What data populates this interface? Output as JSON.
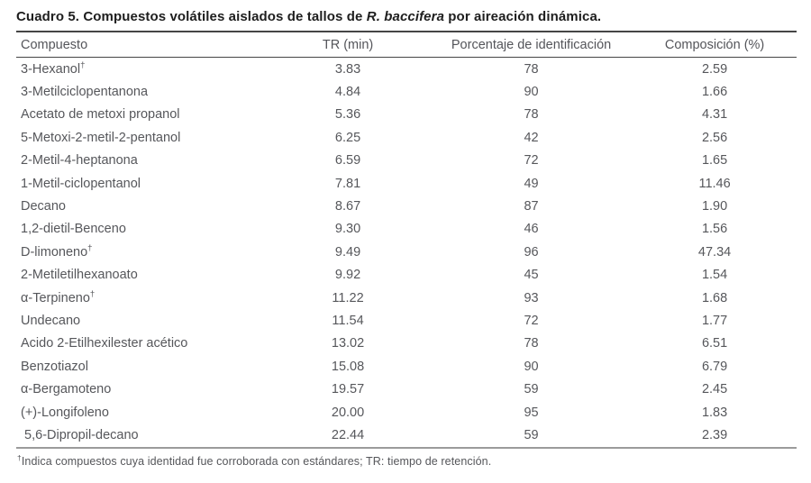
{
  "title": {
    "main": "Cuadro 5. Compuestos volátiles aislados de tallos de",
    "species": "R. baccifera",
    "suffix": "por aireación dinámica."
  },
  "table": {
    "dagger_symbol": "†",
    "columns": [
      "Compuesto",
      "TR (min)",
      "Porcentaje de identificación",
      "Composición (%)"
    ],
    "rows": [
      {
        "compuesto": "3-Hexanol",
        "dagger": true,
        "tr_min": "3.83",
        "porcentaje": "78",
        "composicion": "2.59"
      },
      {
        "compuesto": "3-Metilciclopentanona",
        "dagger": false,
        "tr_min": "4.84",
        "porcentaje": "90",
        "composicion": "1.66"
      },
      {
        "compuesto": "Acetato de metoxi propanol",
        "dagger": false,
        "tr_min": "5.36",
        "porcentaje": "78",
        "composicion": "4.31"
      },
      {
        "compuesto": "5-Metoxi-2-metil-2-pentanol",
        "dagger": false,
        "tr_min": "6.25",
        "porcentaje": "42",
        "composicion": "2.56"
      },
      {
        "compuesto": "2-Metil-4-heptanona",
        "dagger": false,
        "tr_min": "6.59",
        "porcentaje": "72",
        "composicion": "1.65"
      },
      {
        "compuesto": "1-Metil-ciclopentanol",
        "dagger": false,
        "tr_min": "7.81",
        "porcentaje": "49",
        "composicion": "11.46"
      },
      {
        "compuesto": "Decano",
        "dagger": false,
        "tr_min": "8.67",
        "porcentaje": "87",
        "composicion": "1.90"
      },
      {
        "compuesto": "1,2-dietil-Benceno",
        "dagger": false,
        "tr_min": "9.30",
        "porcentaje": "46",
        "composicion": "1.56"
      },
      {
        "compuesto": "D-limoneno",
        "dagger": true,
        "tr_min": "9.49",
        "porcentaje": "96",
        "composicion": "47.34"
      },
      {
        "compuesto": "2-Metiletilhexanoato",
        "dagger": false,
        "tr_min": "9.92",
        "porcentaje": "45",
        "composicion": "1.54"
      },
      {
        "compuesto": "α-Terpineno",
        "dagger": true,
        "tr_min": "11.22",
        "porcentaje": "93",
        "composicion": "1.68"
      },
      {
        "compuesto": "Undecano",
        "dagger": false,
        "tr_min": "11.54",
        "porcentaje": "72",
        "composicion": "1.77"
      },
      {
        "compuesto": "Acido 2-Etilhexilester acético",
        "dagger": false,
        "tr_min": "13.02",
        "porcentaje": "78",
        "composicion": "6.51"
      },
      {
        "compuesto": "Benzotiazol",
        "dagger": false,
        "tr_min": "15.08",
        "porcentaje": "90",
        "composicion": "6.79"
      },
      {
        "compuesto": "α-Bergamoteno",
        "dagger": false,
        "tr_min": "19.57",
        "porcentaje": "59",
        "composicion": "2.45"
      },
      {
        "compuesto": "(+)-Longifoleno",
        "dagger": false,
        "tr_min": "20.00",
        "porcentaje": "95",
        "composicion": "1.83"
      },
      {
        "compuesto": " 5,6-Dipropil-decano",
        "dagger": false,
        "tr_min": "22.44",
        "porcentaje": "59",
        "composicion": "2.39"
      }
    ]
  },
  "footnote": {
    "marker": "†",
    "text": "Indica compuestos cuya identidad fue corroborada con estándares; TR: tiempo de retención."
  }
}
